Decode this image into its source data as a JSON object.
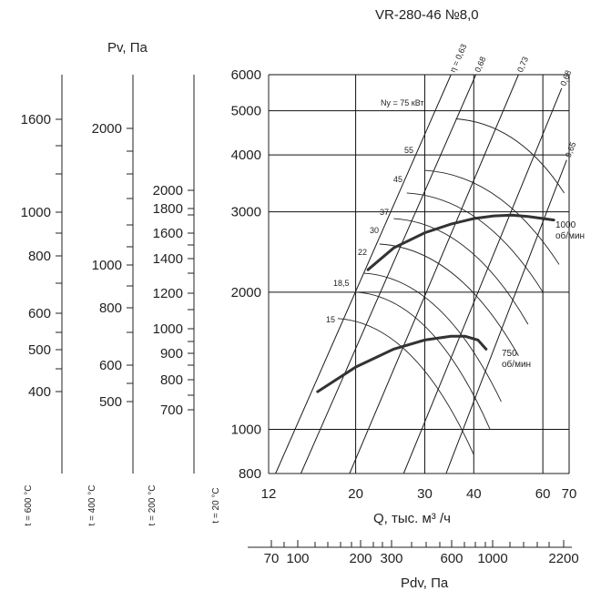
{
  "chart_data": {
    "type": "line",
    "title": "VR-280-46 №8,0",
    "xlabel": "Q, тыс. м³ /ч",
    "x_scale": "log",
    "xlim": [
      12,
      70
    ],
    "x_ticks": [
      "12",
      "20",
      "30",
      "40",
      "60",
      "70"
    ],
    "ylim": [
      800,
      6000
    ],
    "y_scale": "log",
    "y_ticks_20C": [
      "6000",
      "5000",
      "4000",
      "3000",
      "2000",
      "1000",
      "800"
    ],
    "left_axis_title": "Pv, Па",
    "temp_axes": [
      {
        "label": "t = 600 °C",
        "ticks": [
          "1600",
          "1000",
          "800",
          "600",
          "500",
          "400"
        ]
      },
      {
        "label": "t = 400 °C",
        "ticks": [
          "2000",
          "1000",
          "800",
          "600",
          "500"
        ]
      },
      {
        "label": "t = 200 °C",
        "ticks": [
          "2000",
          "1800",
          "1600",
          "1400",
          "1200",
          "1000",
          "900",
          "800",
          "700"
        ]
      },
      {
        "label": "t = 20 °C",
        "ticks": []
      }
    ],
    "bottom_axis": {
      "label": "Pdv, Па",
      "ticks": [
        "70",
        "100",
        "200",
        "300",
        "600",
        "1000",
        "2200"
      ]
    },
    "efficiency_lines": [
      {
        "label": "η = 0,63",
        "from": [
          12.5,
          800
        ],
        "to": [
          35,
          6000
        ]
      },
      {
        "label": "0,68",
        "from": [
          14.5,
          800
        ],
        "to": [
          40.5,
          6000
        ]
      },
      {
        "label": "0,73",
        "from": [
          19.3,
          800
        ],
        "to": [
          52,
          6000
        ]
      },
      {
        "label": "0,68",
        "from": [
          26.5,
          800
        ],
        "to": [
          67,
          5600
        ]
      },
      {
        "label": "0,65",
        "from": [
          34,
          800
        ],
        "to": [
          69,
          3900
        ]
      }
    ],
    "power_levels": [
      "Nу = 75 кВт",
      "55",
      "45",
      "37",
      "30",
      "22",
      "18,5",
      "15"
    ],
    "series": [
      {
        "name": "1000 об/мин",
        "x": [
          21.5,
          25,
          30,
          35,
          40,
          45,
          50,
          55,
          60,
          64
        ],
        "y": [
          2240,
          2500,
          2700,
          2820,
          2900,
          2940,
          2950,
          2930,
          2900,
          2880
        ]
      },
      {
        "name": "750 об/мин",
        "x": [
          16,
          20,
          25,
          30,
          35,
          38,
          41,
          43
        ],
        "y": [
          1210,
          1370,
          1500,
          1570,
          1600,
          1600,
          1570,
          1500
        ]
      }
    ]
  }
}
